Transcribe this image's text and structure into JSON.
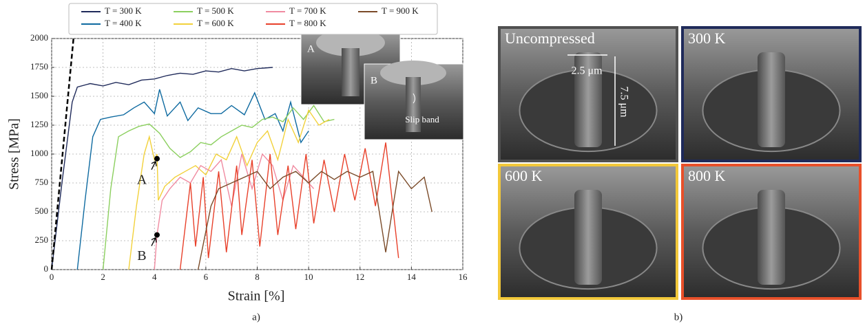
{
  "chart_data": {
    "type": "line",
    "x_label": "Strain [%]",
    "y_label": "Stress [MPa]",
    "panel_label": "a)",
    "xlim": [
      0,
      16
    ],
    "ylim": [
      0,
      2000
    ],
    "xticks": [
      0,
      2,
      4,
      6,
      8,
      10,
      12,
      14,
      16
    ],
    "yticks": [
      0,
      250,
      500,
      750,
      1000,
      1250,
      1500,
      1750,
      2000
    ],
    "grid": true,
    "series": [
      {
        "name": "T = 300 K",
        "color": "#1f2a5a",
        "x": [
          0,
          0.4,
          0.8,
          1.0,
          1.5,
          2,
          2.5,
          3,
          3.5,
          4,
          4.5,
          5,
          5.5,
          6,
          6.5,
          7,
          7.5,
          8,
          8.6
        ],
        "values": [
          0,
          750,
          1450,
          1580,
          1610,
          1590,
          1620,
          1600,
          1640,
          1650,
          1680,
          1700,
          1690,
          1720,
          1710,
          1740,
          1720,
          1740,
          1750
        ]
      },
      {
        "name": "T = 400 K",
        "color": "#0e6aa0",
        "x": [
          1.0,
          1.3,
          1.6,
          1.9,
          2.3,
          2.8,
          3.2,
          3.6,
          4.0,
          4.2,
          4.5,
          5,
          5.3,
          5.7,
          6.2,
          6.6,
          7,
          7.5,
          7.9,
          8.3,
          8.7,
          9,
          9.3,
          9.7,
          10
        ],
        "values": [
          0,
          600,
          1150,
          1300,
          1320,
          1340,
          1400,
          1450,
          1350,
          1560,
          1330,
          1450,
          1290,
          1400,
          1350,
          1350,
          1420,
          1340,
          1530,
          1300,
          1350,
          1200,
          1450,
          1100,
          1200
        ]
      },
      {
        "name": "T = 500 K",
        "color": "#8bcf5e",
        "x": [
          2,
          2.3,
          2.6,
          3,
          3.4,
          3.8,
          4.2,
          4.6,
          5,
          5.4,
          5.8,
          6.2,
          6.6,
          7,
          7.4,
          7.8,
          8.2,
          8.6,
          9,
          9.4,
          9.8,
          10.2,
          10.6,
          11
        ],
        "values": [
          0,
          700,
          1150,
          1200,
          1240,
          1260,
          1180,
          1050,
          970,
          1020,
          1100,
          1080,
          1150,
          1200,
          1250,
          1230,
          1300,
          1320,
          1280,
          1400,
          1300,
          1420,
          1280,
          1300
        ]
      },
      {
        "name": "T = 600 K",
        "color": "#f2d13a",
        "x": [
          3,
          3.3,
          3.6,
          3.8,
          4.0,
          4.1,
          4.15,
          4.4,
          4.8,
          5.2,
          5.6,
          6,
          6.4,
          6.8,
          7.2,
          7.6,
          8,
          8.4,
          8.8,
          9.2,
          9.6,
          10,
          10.4,
          10.8
        ],
        "values": [
          0,
          550,
          1000,
          1150,
          950,
          1000,
          600,
          720,
          800,
          850,
          900,
          820,
          1000,
          950,
          1150,
          900,
          1100,
          1200,
          950,
          1300,
          1100,
          1380,
          1250,
          1300
        ]
      },
      {
        "name": "T = 700 K",
        "color": "#f08aa0",
        "x": [
          4,
          4.1,
          4.3,
          4.6,
          5,
          5.4,
          5.8,
          6.2,
          6.6,
          7,
          7.4,
          7.8,
          8.2,
          8.6,
          9,
          9.4,
          9.8,
          10.2
        ],
        "values": [
          0,
          300,
          600,
          700,
          800,
          750,
          900,
          850,
          950,
          550,
          1000,
          700,
          1000,
          900,
          600,
          900,
          800,
          700
        ]
      },
      {
        "name": "T = 800 K",
        "color": "#e8402a",
        "x": [
          5,
          5.4,
          5.6,
          5.9,
          6.1,
          6.5,
          6.8,
          7.2,
          7.4,
          7.8,
          8.1,
          8.5,
          8.8,
          9.2,
          9.5,
          9.9,
          10.2,
          10.6,
          11,
          11.4,
          11.8,
          12.2,
          12.6,
          13,
          13.5
        ],
        "values": [
          0,
          750,
          200,
          800,
          100,
          850,
          150,
          900,
          300,
          950,
          200,
          1000,
          300,
          900,
          350,
          1000,
          400,
          950,
          500,
          1000,
          600,
          1050,
          550,
          1100,
          100
        ]
      },
      {
        "name": "T = 900 K",
        "color": "#7a4a28",
        "x": [
          5.7,
          6.2,
          6.5,
          7,
          7.5,
          8,
          8.5,
          9,
          9.5,
          10,
          10.5,
          11,
          11.5,
          12,
          12.5,
          13,
          13.5,
          14,
          14.5,
          14.8
        ],
        "values": [
          0,
          550,
          700,
          750,
          800,
          850,
          700,
          800,
          850,
          750,
          850,
          780,
          850,
          800,
          850,
          150,
          850,
          700,
          800,
          500
        ]
      }
    ],
    "elastic_line": {
      "x": [
        0,
        0.85
      ],
      "values": [
        0,
        2000
      ]
    },
    "markers": [
      {
        "label": "A",
        "x": 4.1,
        "y": 960
      },
      {
        "label": "B",
        "x": 4.1,
        "y": 300
      }
    ],
    "insets": [
      {
        "label": "A"
      },
      {
        "label": "B",
        "note": "Slip band"
      }
    ]
  },
  "panel_b": {
    "panel_label": "b)",
    "images": [
      {
        "label": "Uncompressed"
      },
      {
        "label": "300 K"
      },
      {
        "label": "600 K"
      },
      {
        "label": "800 K"
      }
    ],
    "scale_labels": [
      "2.5 μm",
      "7.5 μm"
    ]
  }
}
